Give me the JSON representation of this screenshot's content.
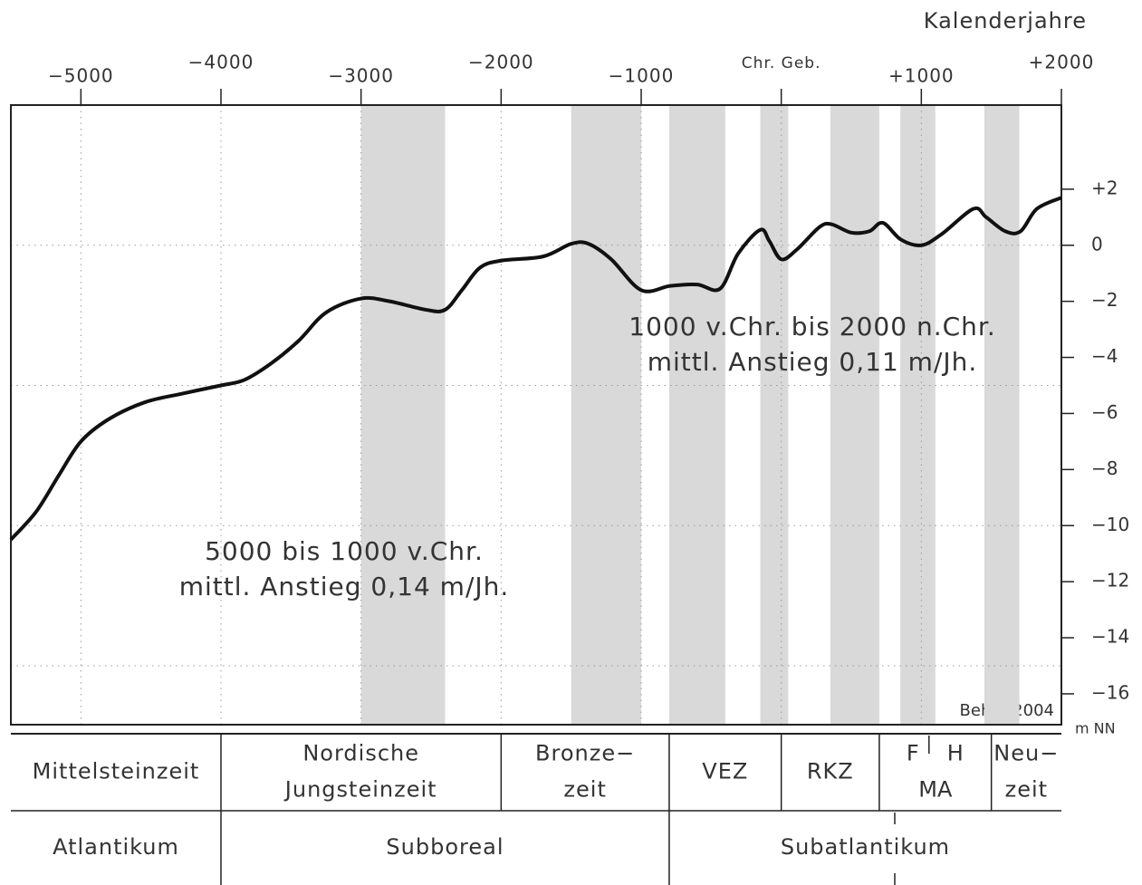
{
  "chart_data": {
    "type": "line",
    "x_label": "Kalenderjahre",
    "y_label": "m NN",
    "source": "Behre 2004",
    "color": "#111111",
    "x": [
      -5500,
      -5319,
      -5157,
      -5000,
      -4800,
      -4543,
      -4284,
      -4000,
      -3832,
      -3638,
      -3444,
      -3250,
      -3000,
      -2797,
      -2539,
      -2400,
      -2280,
      -2151,
      -2000,
      -1700,
      -1500,
      -1375,
      -1214,
      -1000,
      -793,
      -600,
      -437,
      -308,
      -150,
      -85,
      0,
      112,
      273,
      358,
      500,
      629,
      725,
      855,
      1000,
      1146,
      1372,
      1463,
      1599,
      1709,
      1825,
      2000
    ],
    "values": [
      -10.5,
      -9.5,
      -8.2,
      -7.0,
      -6.2,
      -5.6,
      -5.3,
      -5.0,
      -4.8,
      -4.2,
      -3.4,
      -2.4,
      -1.9,
      -2.0,
      -2.3,
      -2.3,
      -1.6,
      -0.8,
      -0.55,
      -0.4,
      0.05,
      0.05,
      -0.5,
      -1.6,
      -1.45,
      -1.4,
      -1.55,
      -0.3,
      0.55,
      0.15,
      -0.5,
      -0.15,
      0.65,
      0.75,
      0.45,
      0.5,
      0.8,
      0.2,
      0,
      0.4,
      1.3,
      1.0,
      0.5,
      0.5,
      1.3,
      1.7
    ],
    "xlim": [
      -5500,
      2000
    ],
    "ylim": [
      -17.1,
      5
    ],
    "xticks": [
      {
        "value": -5000,
        "label": "−5000"
      },
      {
        "value": -4000,
        "label": "−4000"
      },
      {
        "value": -3000,
        "label": "−3000"
      },
      {
        "value": -2000,
        "label": "−2000"
      },
      {
        "value": -1000,
        "label": "−1000"
      },
      {
        "value": 0,
        "label": "Chr. Geb."
      },
      {
        "value": 1000,
        "label": "+1000"
      },
      {
        "value": 2000,
        "label": "+2000"
      }
    ],
    "yticks": [
      {
        "value": 2,
        "label": "+2"
      },
      0,
      {
        "value": -2,
        "label": "−2"
      },
      {
        "value": -4,
        "label": "−4"
      },
      {
        "value": -6,
        "label": "−6"
      },
      {
        "value": -8,
        "label": "−8"
      },
      {
        "value": -10,
        "label": "−10"
      },
      {
        "value": -12,
        "label": "−12"
      },
      {
        "value": -14,
        "label": "−14"
      },
      {
        "value": -16,
        "label": "−16"
      }
    ],
    "xgrid": true,
    "ygrid": [
      0,
      -5,
      -10,
      -15
    ],
    "bands": {
      "color": "#d9d9d9",
      "ranges": [
        [
          -3000,
          -2400
        ],
        [
          -1500,
          -1000
        ],
        [
          -800,
          -400
        ],
        [
          -150,
          50
        ],
        [
          350,
          700
        ],
        [
          850,
          1100
        ],
        [
          1450,
          1700
        ]
      ]
    },
    "annotations": [
      [
        "1000  v.Chr.  bis  2000  n.Chr.",
        "mittl.  Anstieg  0,11  m/Jh."
      ],
      [
        "5000  bis  1000  v.Chr.",
        "mittl.  Anstieg  0,14  m/Jh."
      ]
    ],
    "period_rows": [
      [
        {
          "lines": [
            "Mittelsteinzeit"
          ],
          "from": -5500,
          "to": -4000
        },
        {
          "lines": [
            "Nordische",
            "Jungsteinzeit"
          ],
          "from": -4000,
          "to": -2000
        },
        {
          "lines": [
            "Bronze−",
            "zeit"
          ],
          "from": -2000,
          "to": -800
        },
        {
          "lines": [
            "VEZ"
          ],
          "from": -800,
          "to": 0
        },
        {
          "lines": [
            "RKZ"
          ],
          "from": 0,
          "to": 700
        },
        {
          "top": [
            "F",
            "H"
          ],
          "lines": [
            "MA"
          ],
          "from": 700,
          "to": 1500
        },
        {
          "lines": [
            "Neu−",
            "zeit"
          ],
          "from": 1500,
          "to": 2000
        }
      ],
      [
        {
          "lines": [
            "Atlantikum"
          ],
          "from": -5500,
          "to": -4000
        },
        {
          "lines": [
            "Subboreal"
          ],
          "from": -4000,
          "to": -800
        },
        {
          "lines": [
            "Subatlantikum"
          ],
          "from": -800,
          "to": 2000
        }
      ]
    ]
  }
}
